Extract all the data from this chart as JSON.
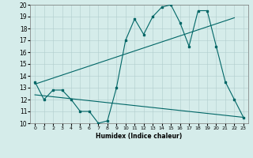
{
  "title": "",
  "xlabel": "Humidex (Indice chaleur)",
  "xlim": [
    -0.5,
    23.5
  ],
  "ylim": [
    10,
    20
  ],
  "xticks": [
    0,
    1,
    2,
    3,
    4,
    5,
    6,
    7,
    8,
    9,
    10,
    11,
    12,
    13,
    14,
    15,
    16,
    17,
    18,
    19,
    20,
    21,
    22,
    23
  ],
  "yticks": [
    10,
    11,
    12,
    13,
    14,
    15,
    16,
    17,
    18,
    19,
    20
  ],
  "bg_color": "#d5ecea",
  "grid_color": "#b0cccc",
  "line_color": "#006666",
  "series1_x": [
    0,
    1,
    2,
    3,
    4,
    5,
    6,
    7,
    8,
    9,
    10,
    11,
    12,
    13,
    14,
    15,
    16,
    17,
    18,
    19,
    20,
    21,
    22,
    23
  ],
  "series1_y": [
    13.5,
    12.0,
    12.8,
    12.8,
    12.0,
    11.0,
    11.0,
    10.0,
    10.2,
    13.0,
    17.0,
    18.8,
    17.5,
    19.0,
    19.8,
    20.0,
    18.5,
    16.5,
    19.5,
    19.5,
    16.5,
    13.5,
    12.0,
    10.5
  ],
  "series2_x": [
    0,
    22
  ],
  "series2_y": [
    13.3,
    18.9
  ],
  "series3_x": [
    0,
    23
  ],
  "series3_y": [
    12.4,
    10.5
  ]
}
